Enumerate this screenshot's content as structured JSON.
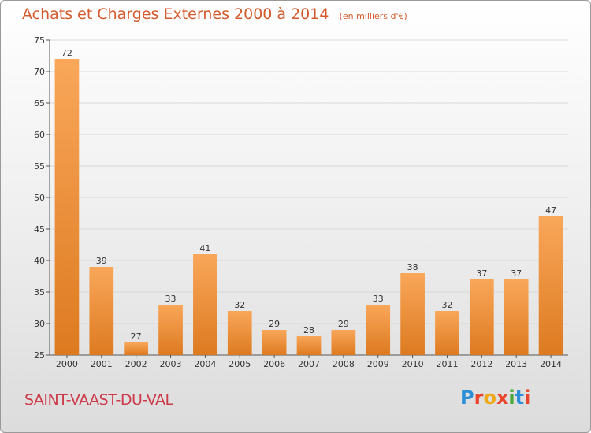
{
  "title": "Achats et Charges Externes 2000 à 2014",
  "subtitle": "(en milliers d'€)",
  "commune": "SAINT-VAAST-DU-VAL",
  "logo_text": "Proxiti",
  "colors": {
    "title": "#d35a2c",
    "commune": "#cc3b4a",
    "bar_light": "#f9a75a",
    "bar_dark": "#dd7a20",
    "grid": "#d8d8d8"
  },
  "chart_data": {
    "type": "bar",
    "title": "Achats et Charges Externes 2000 à 2014",
    "subtitle": "(en milliers d'€)",
    "categories": [
      "2000",
      "2001",
      "2002",
      "2003",
      "2004",
      "2005",
      "2006",
      "2007",
      "2008",
      "2009",
      "2010",
      "2011",
      "2012",
      "2013",
      "2014"
    ],
    "values": [
      72,
      39,
      27,
      33,
      41,
      32,
      29,
      28,
      29,
      33,
      38,
      32,
      37,
      37,
      47
    ],
    "ylim": [
      25,
      75
    ],
    "yticks": [
      25,
      30,
      35,
      40,
      45,
      50,
      55,
      60,
      65,
      70,
      75
    ],
    "grid": true,
    "data_labels": true
  }
}
